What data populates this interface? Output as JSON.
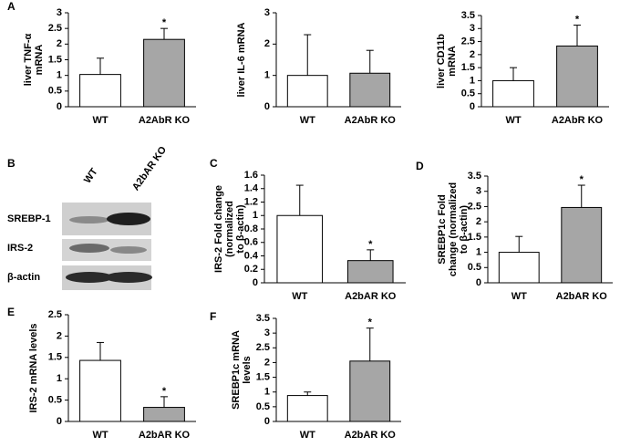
{
  "panel_labels": [
    "A",
    "B",
    "C",
    "D",
    "E",
    "F"
  ],
  "blot": {
    "lanes": [
      "WT",
      "A2bAR KO"
    ],
    "rows": [
      "SREBP-1",
      "IRS-2",
      "β-actin"
    ]
  },
  "chart_data": [
    {
      "type": "bar",
      "ylabel": [
        "liver TNF-α",
        "mRNA"
      ],
      "categories": [
        "WT",
        "A2AbR KO"
      ],
      "values": [
        1.03,
        2.15
      ],
      "errors": [
        0.52,
        0.35
      ],
      "significance": [
        null,
        "*"
      ],
      "colors": [
        "#ffffff",
        "#a6a6a6"
      ],
      "ylim": [
        0,
        3
      ],
      "yticks": [
        0,
        0.5,
        1,
        1.5,
        2,
        2.5,
        3
      ]
    },
    {
      "type": "bar",
      "ylabel": [
        "liver IL-6 mRNA"
      ],
      "categories": [
        "WT",
        "A2AbR KO"
      ],
      "values": [
        1.0,
        1.07
      ],
      "errors": [
        1.3,
        0.73
      ],
      "significance": [
        null,
        null
      ],
      "colors": [
        "#ffffff",
        "#a6a6a6"
      ],
      "ylim": [
        0,
        3
      ],
      "yticks": [
        0,
        1,
        2,
        3
      ]
    },
    {
      "type": "bar",
      "ylabel": [
        "liver CD11b",
        "mRNA"
      ],
      "categories": [
        "WT",
        "A2AbR KO"
      ],
      "values": [
        1.0,
        2.33
      ],
      "errors": [
        0.5,
        0.8
      ],
      "significance": [
        null,
        "*"
      ],
      "colors": [
        "#ffffff",
        "#a6a6a6"
      ],
      "ylim": [
        0,
        3.5
      ],
      "yticks": [
        0,
        0.5,
        1,
        1.5,
        2,
        2.5,
        3,
        3.5
      ]
    },
    {
      "type": "bar",
      "ylabel": [
        "IRS-2 Fold change",
        "(normalized",
        "to β-actin)"
      ],
      "categories": [
        "WT",
        "A2bAR KO"
      ],
      "values": [
        1.0,
        0.33
      ],
      "errors": [
        0.45,
        0.16
      ],
      "significance": [
        null,
        "*"
      ],
      "colors": [
        "#ffffff",
        "#a6a6a6"
      ],
      "ylim": [
        0,
        1.6
      ],
      "yticks": [
        0,
        0.2,
        0.4,
        0.6,
        0.8,
        1,
        1.2,
        1.4,
        1.6
      ]
    },
    {
      "type": "bar",
      "ylabel": [
        "SREBP1c Fold",
        "change (normalized",
        "to β-actin)"
      ],
      "categories": [
        "WT",
        "A2bAR KO"
      ],
      "values": [
        1.0,
        2.47
      ],
      "errors": [
        0.52,
        0.73
      ],
      "significance": [
        null,
        "*"
      ],
      "colors": [
        "#ffffff",
        "#a6a6a6"
      ],
      "ylim": [
        0,
        3.5
      ],
      "yticks": [
        0,
        0.5,
        1,
        1.5,
        2,
        2.5,
        3,
        3.5
      ]
    },
    {
      "type": "bar",
      "ylabel": [
        "IRS-2 mRNA levels"
      ],
      "categories": [
        "WT",
        "A2bAR KO"
      ],
      "values": [
        1.43,
        0.33
      ],
      "errors": [
        0.42,
        0.25
      ],
      "significance": [
        null,
        "*"
      ],
      "colors": [
        "#ffffff",
        "#a6a6a6"
      ],
      "ylim": [
        0,
        2.5
      ],
      "yticks": [
        0,
        0.5,
        1,
        1.5,
        2,
        2.5
      ]
    },
    {
      "type": "bar",
      "ylabel": [
        "SREBP1c mRNA",
        "levels"
      ],
      "categories": [
        "WT",
        "A2bAR KO"
      ],
      "values": [
        0.88,
        2.05
      ],
      "errors": [
        0.12,
        1.12
      ],
      "significance": [
        null,
        "*"
      ],
      "colors": [
        "#ffffff",
        "#a6a6a6"
      ],
      "ylim": [
        0,
        3.5
      ],
      "yticks": [
        0,
        0.5,
        1,
        1.5,
        2,
        2.5,
        3,
        3.5
      ]
    }
  ]
}
